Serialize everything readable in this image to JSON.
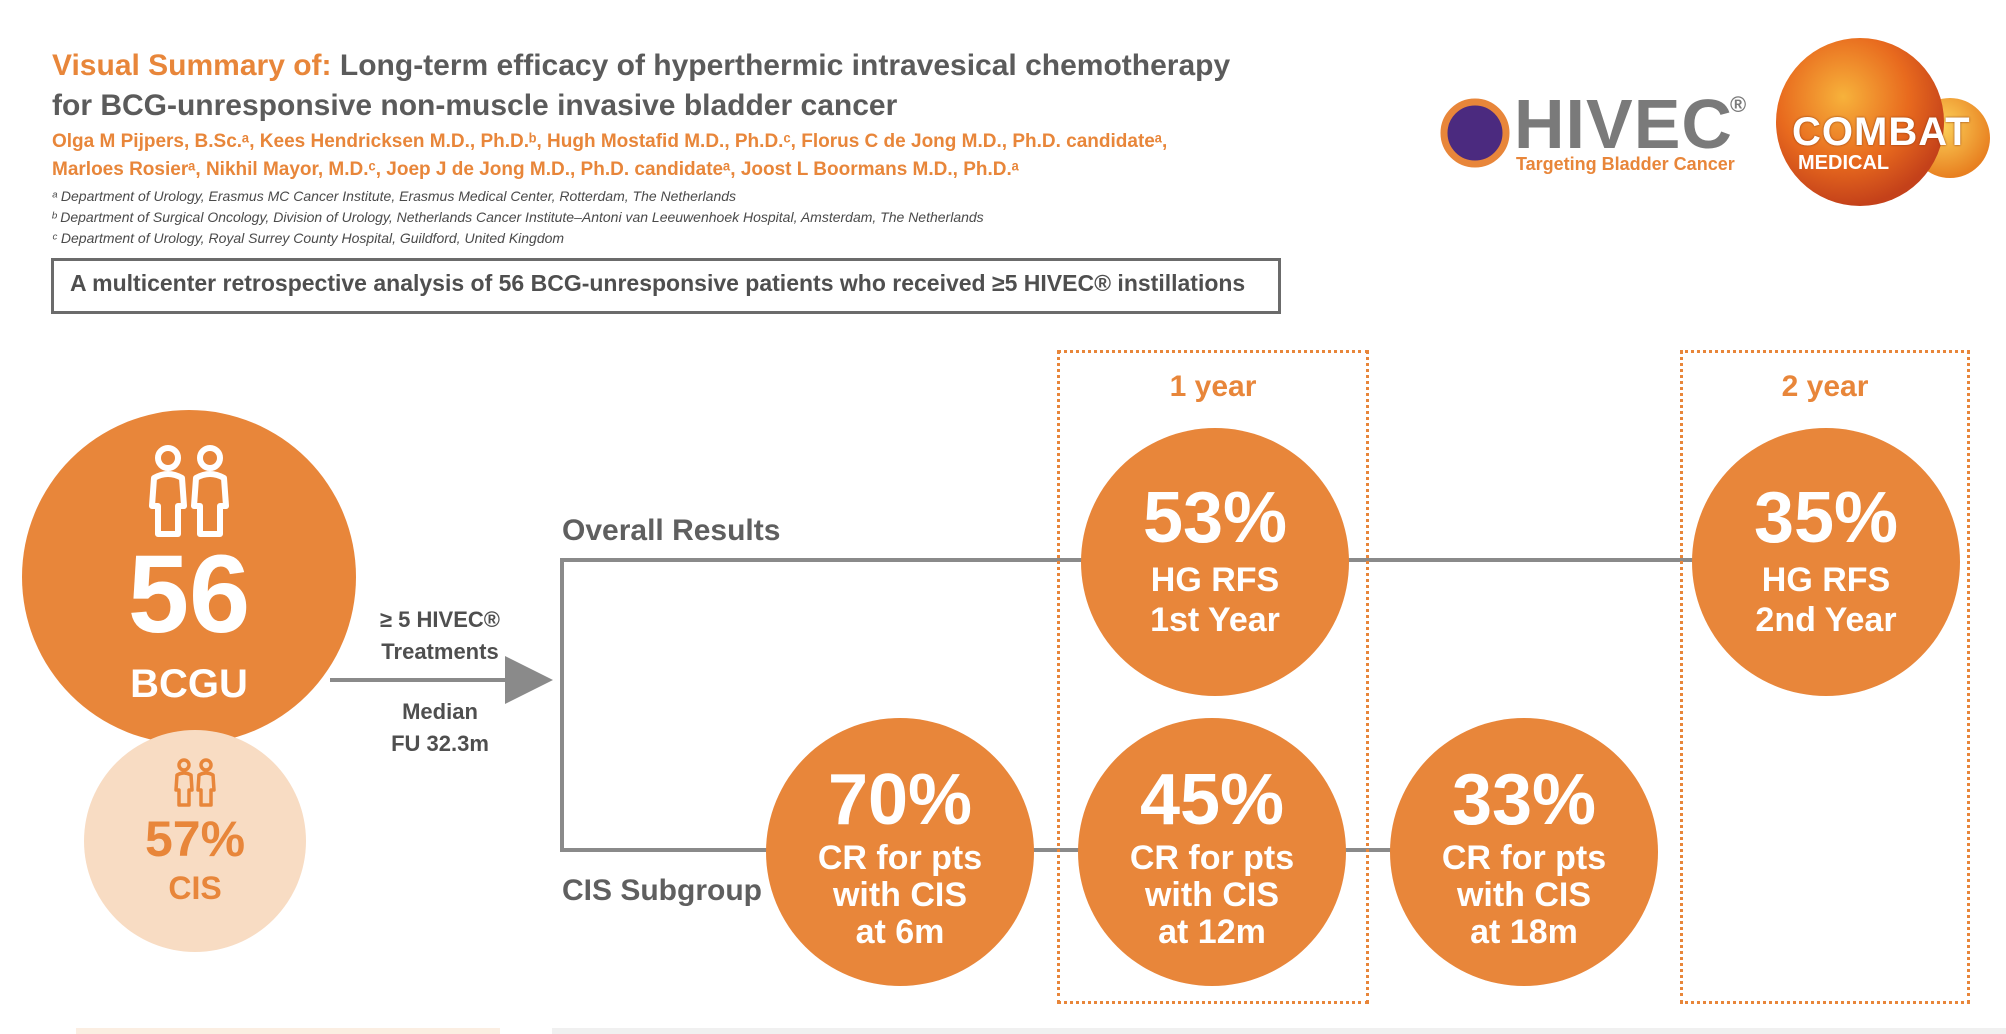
{
  "header": {
    "title_prefix": "Visual Summary of:",
    "title_line1": "Long-term efficacy of hyperthermic intravesical chemotherapy",
    "title_line2": "for BCG-unresponsive non-muscle invasive bladder cancer",
    "authors_line1": "Olga M Pijpers, B.Sc.ᵃ, Kees Hendricksen M.D., Ph.D.ᵇ, Hugh Mostafid M.D., Ph.D.ᶜ, Florus C de Jong M.D., Ph.D. candidateᵃ,",
    "authors_line2": "Marloes Rosierᵃ, Nikhil Mayor, M.D.ᶜ, Joep J de Jong M.D., Ph.D. candidateᵃ, Joost L Boormans M.D., Ph.D.ᵃ",
    "affiliations": [
      "ᵃ Department of Urology, Erasmus MC Cancer Institute, Erasmus Medical Center, Rotterdam, The Netherlands",
      "ᵇ Department of Surgical Oncology, Division of Urology, Netherlands Cancer Institute–Antoni van Leeuwenhoek Hospital, Amsterdam, The Netherlands",
      "ᶜ Department of Urology, Royal Surrey County Hospital, Guildford, United Kingdom"
    ]
  },
  "logos": {
    "hivec_name": "HIVEC",
    "hivec_reg": "®",
    "hivec_tagline": "Targeting Bladder Cancer",
    "combat_top": "COMBAT",
    "combat_bottom": "MEDICAL"
  },
  "summary": "A multicenter retrospective analysis of 56 BCG-unresponsive patients who received ≥5 HIVEC® instillations",
  "cohort": {
    "count": "56",
    "label": "BCGU",
    "cis_pct": "57%",
    "cis_label": "CIS"
  },
  "treatment": {
    "line1": "≥ 5 HIVEC®",
    "line2": "Treatments",
    "fu_line1": "Median",
    "fu_line2": "FU 32.3m"
  },
  "sections": {
    "overall": "Overall Results",
    "cis": "CIS Subgroup"
  },
  "years": {
    "one": "1 year",
    "two": "2 year"
  },
  "overall_results": [
    {
      "pct": "53%",
      "line1": "HG RFS",
      "line2": "1st Year"
    },
    {
      "pct": "35%",
      "line1": "HG RFS",
      "line2": "2nd Year"
    }
  ],
  "cis_results": [
    {
      "pct": "70%",
      "line1": "CR for pts",
      "line2": "with CIS",
      "line3": "at 6m"
    },
    {
      "pct": "45%",
      "line1": "CR for pts",
      "line2": "with CIS",
      "line3": "at 12m"
    },
    {
      "pct": "33%",
      "line1": "CR for pts",
      "line2": "with CIS",
      "line3": "at 18m"
    }
  ],
  "colors": {
    "accent": "#e8863a",
    "accent_light": "#f8dcc3",
    "text_dark": "#5b5b5b",
    "connector": "#8a8a8a",
    "hivec_purple": "#4b2a7f"
  }
}
